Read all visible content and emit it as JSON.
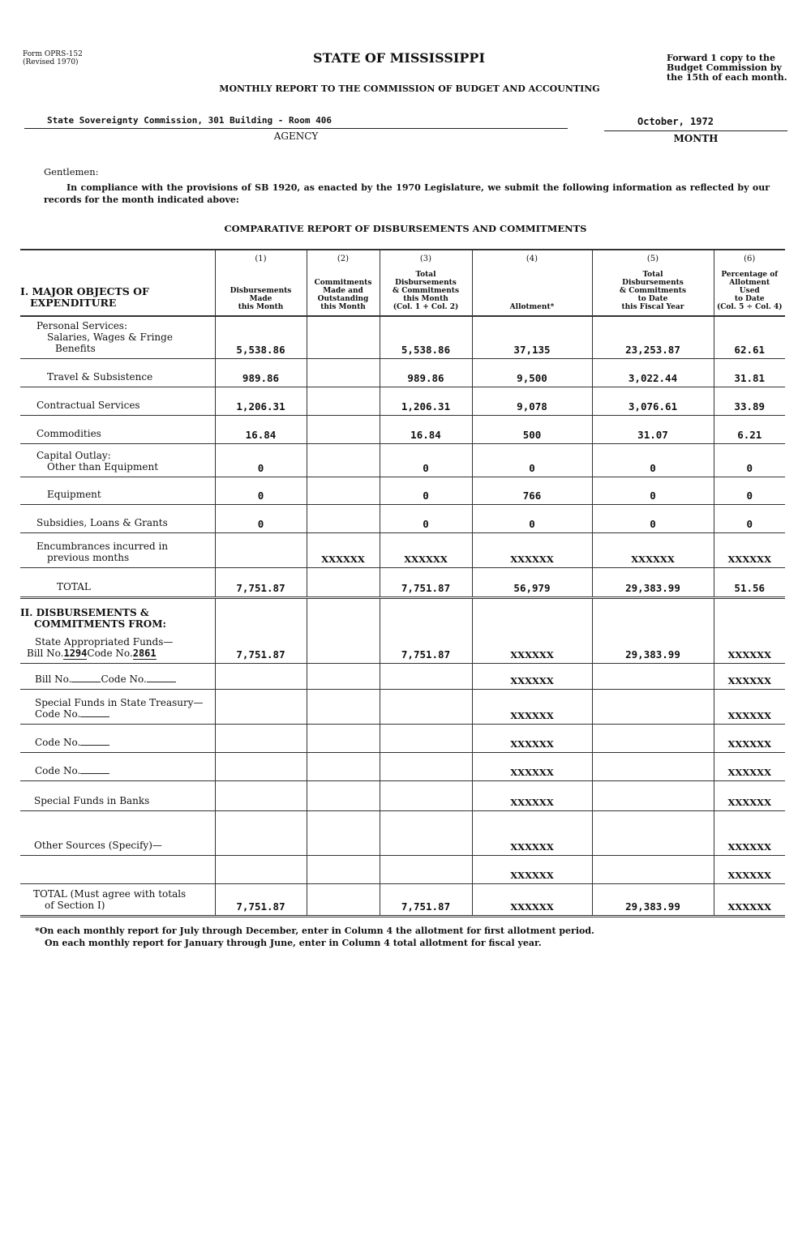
{
  "header": {
    "form_id": "Form OPRS-152",
    "revised": "(Revised 1970)",
    "state": "STATE OF MISSISSIPPI",
    "forward_note": [
      "Forward 1 copy to the",
      "Budget Commission by",
      "the 15th of each month."
    ],
    "subtitle": "MONTHLY REPORT TO THE COMMISSION OF BUDGET AND ACCOUNTING",
    "agency_value": "State Sovereignty Commission, 301 Building - Room 406",
    "agency_label": "AGENCY",
    "month_value": "October, 1972",
    "month_label": "MONTH"
  },
  "letter": {
    "greeting": "Gentlemen:",
    "body": "In compliance with the provisions of SB 1920, as enacted by the 1970 Legislature, we submit the following information as reflected by our records for the month indicated above:"
  },
  "table": {
    "title": "COMPARATIVE REPORT OF DISBURSEMENTS AND COMMITMENTS",
    "section1_heading": [
      "I. MAJOR OBJECTS OF",
      "EXPENDITURE"
    ],
    "columns": [
      {
        "num": "(1)",
        "label": [
          "Disbursements",
          "Made",
          "this Month"
        ]
      },
      {
        "num": "(2)",
        "label": [
          "Commitments",
          "Made and",
          "Outstanding",
          "this Month"
        ]
      },
      {
        "num": "(3)",
        "label": [
          "Total",
          "Disbursements",
          "& Commitments",
          "this Month",
          "(Col. 1 + Col. 2)"
        ]
      },
      {
        "num": "(4)",
        "label": [
          "Allotment*"
        ]
      },
      {
        "num": "(5)",
        "label": [
          "Total",
          "Disbursements",
          "& Commitments",
          "to Date",
          "this Fiscal Year"
        ]
      },
      {
        "num": "(6)",
        "label": [
          "Percentage of",
          "Allotment",
          "Used",
          "to Date",
          "(Col. 5 ÷ Col. 4)"
        ]
      }
    ],
    "section1_rows": [
      {
        "label": [
          "Personal Services:",
          "Salaries, Wages & Fringe",
          "Benefits"
        ],
        "values": [
          "5,538.86",
          "",
          "5,538.86",
          "37,135",
          "23,253.87",
          "62.61"
        ]
      },
      {
        "label": [
          "Travel & Subsistence"
        ],
        "values": [
          "989.86",
          "",
          "989.86",
          "9,500",
          "3,022.44",
          "31.81"
        ]
      },
      {
        "label": [
          "Contractual Services"
        ],
        "values": [
          "1,206.31",
          "",
          "1,206.31",
          "9,078",
          "3,076.61",
          "33.89"
        ]
      },
      {
        "label": [
          "Commodities"
        ],
        "values": [
          "16.84",
          "",
          "16.84",
          "500",
          "31.07",
          "6.21"
        ]
      },
      {
        "label": [
          "Capital Outlay:",
          "Other than Equipment"
        ],
        "values": [
          "0",
          "",
          "0",
          "0",
          "0",
          "0"
        ]
      },
      {
        "label": [
          "Equipment"
        ],
        "values": [
          "0",
          "",
          "0",
          "766",
          "0",
          "0"
        ]
      },
      {
        "label": [
          "Subsidies, Loans & Grants"
        ],
        "values": [
          "0",
          "",
          "0",
          "0",
          "0",
          "0"
        ]
      },
      {
        "label": [
          "Encumbrances incurred in",
          "previous months"
        ],
        "values": [
          "",
          "XXXXXX",
          "XXXXXX",
          "XXXXXX",
          "XXXXXX",
          "XXXXXX"
        ]
      },
      {
        "label": [
          "TOTAL"
        ],
        "values": [
          "7,751.87",
          "",
          "7,751.87",
          "56,979",
          "29,383.99",
          "51.56"
        ]
      }
    ],
    "section2_rows": [
      {
        "label": [
          "II. DISBURSEMENTS &",
          "COMMITMENTS FROM:",
          "State Appropriated Funds—",
          {
            "prefix": "Bill No.",
            "bill": "1294",
            "mid": "Code No.",
            "code": "2861"
          }
        ],
        "values": [
          "7,751.87",
          "",
          "7,751.87",
          "XXXXXX",
          "29,383.99",
          "XXXXXX"
        ]
      },
      {
        "label": [
          {
            "prefix": "Bill No.",
            "bill": "",
            "mid": "Code No.",
            "code": ""
          }
        ],
        "values": [
          "",
          "",
          "",
          "XXXXXX",
          "",
          "XXXXXX"
        ]
      },
      {
        "label": [
          "Special Funds in State Treasury—",
          {
            "prefix": "Code No.",
            "code": ""
          }
        ],
        "values": [
          "",
          "",
          "",
          "XXXXXX",
          "",
          "XXXXXX"
        ]
      },
      {
        "label": [
          {
            "prefix": "Code No.",
            "code": ""
          }
        ],
        "values": [
          "",
          "",
          "",
          "XXXXXX",
          "",
          "XXXXXX"
        ]
      },
      {
        "label": [
          {
            "prefix": "Code No.",
            "code": ""
          }
        ],
        "values": [
          "",
          "",
          "",
          "XXXXXX",
          "",
          "XXXXXX"
        ]
      },
      {
        "label": [
          "Special Funds in Banks"
        ],
        "values": [
          "",
          "",
          "",
          "XXXXXX",
          "",
          "XXXXXX"
        ]
      },
      {
        "label": [
          "Other Sources (Specify)—"
        ],
        "values": [
          "",
          "",
          "",
          "XXXXXX",
          "",
          "XXXXXX"
        ]
      },
      {
        "label": [],
        "values": [
          "",
          "",
          "",
          "XXXXXX",
          "",
          "XXXXXX"
        ]
      },
      {
        "label": [
          "TOTAL (Must agree with totals",
          "of Section I)"
        ],
        "values": [
          "7,751.87",
          "",
          "7,751.87",
          "XXXXXX",
          "29,383.99",
          "XXXXXX"
        ]
      }
    ]
  },
  "footnote": [
    "*On each monthly report for July through December, enter in Column 4 the allotment for first allotment period.",
    "On each monthly report for January through June, enter in Column 4 total allotment for fiscal year."
  ]
}
